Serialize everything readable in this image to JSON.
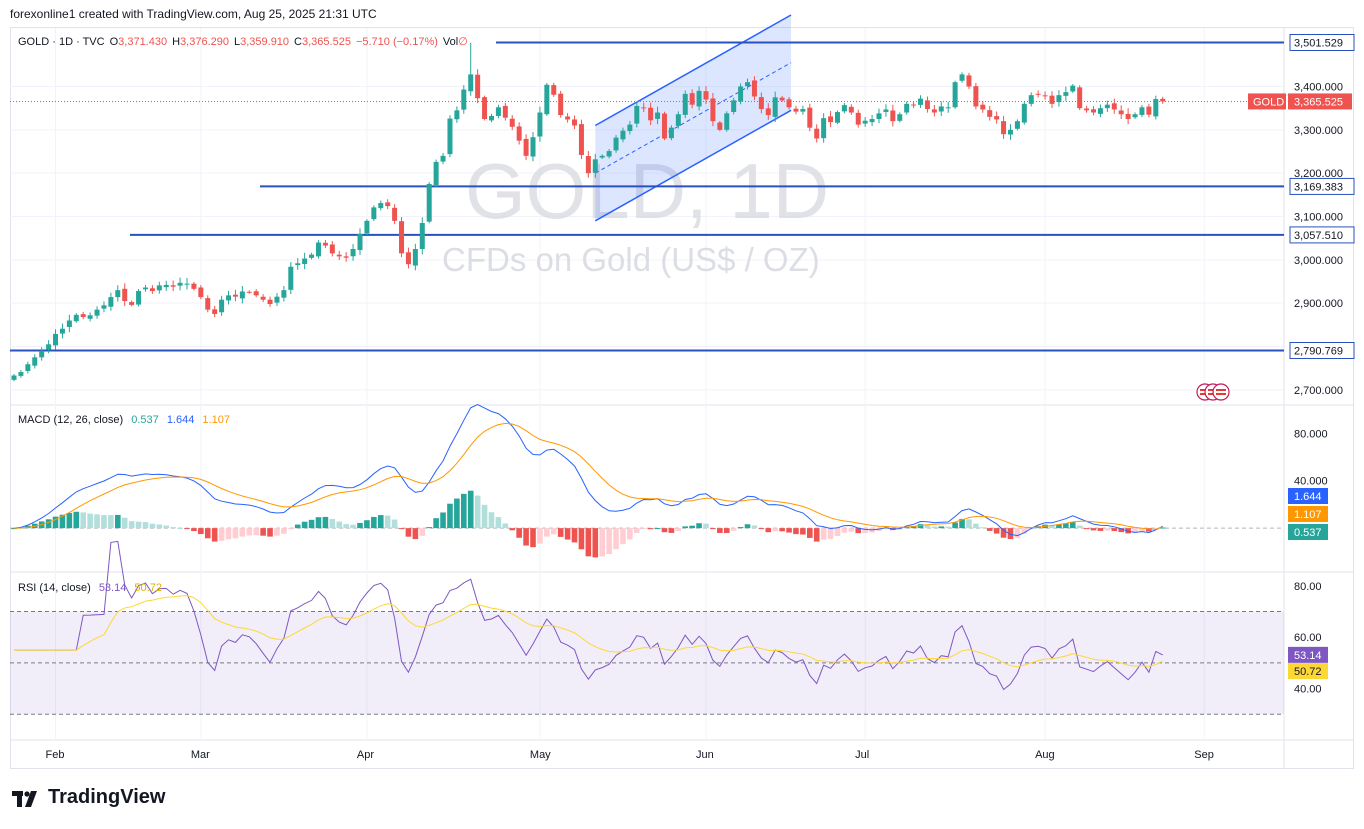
{
  "header": {
    "caption": "forexonline1 created with TradingView.com, Aug 25, 2025 21:31 UTC"
  },
  "legend": {
    "symbol": "GOLD · 1D · TVC",
    "open_label": "O",
    "open": "3,371.430",
    "high_label": "H",
    "high": "3,376.290",
    "low_label": "L",
    "low": "3,359.910",
    "close_label": "C",
    "close": "3,365.525",
    "change": "−5.710 (−0.17%)",
    "vol_label": "Vol",
    "vol_value": "∅"
  },
  "watermark": {
    "title": "GOLD, 1D",
    "subtitle": "CFDs on Gold (US$ / OZ)"
  },
  "macd_legend": {
    "label": "MACD (12, 26, close)",
    "hist": "0.537",
    "macd": "1.644",
    "signal": "1.107"
  },
  "rsi_legend": {
    "label": "RSI (14, close)",
    "rsi": "53.14",
    "ma": "50.72"
  },
  "footer": {
    "brand": "TradingView"
  },
  "colors": {
    "up": "#26a69a",
    "down": "#ef5350",
    "blue": "#2962ff",
    "orange": "#ff9800",
    "purple": "#7e57c2",
    "rsi_ma": "#fdd835",
    "level": "#2a52be"
  },
  "chart_data": {
    "type": "candlestick",
    "title": "GOLD · 1D · TVC",
    "x_months": [
      "Feb",
      "Mar",
      "Apr",
      "May",
      "Jun",
      "Jul",
      "Aug",
      "Sep"
    ],
    "price_axis": {
      "ticks": [
        "2,700.000",
        "2,800.000",
        "2,900.000",
        "3,000.000",
        "3,100.000",
        "3,200.000",
        "3,300.000",
        "3,400.000"
      ],
      "tick_values": [
        2700,
        2800,
        2900,
        3000,
        3100,
        3200,
        3300,
        3400
      ],
      "range": [
        2665,
        3535
      ]
    },
    "horizontal_levels": [
      {
        "label": "3,501.529",
        "value": 3501.529
      },
      {
        "label": "3,169.383",
        "value": 3169.383
      },
      {
        "label": "3,057.510",
        "value": 3057.51
      },
      {
        "label": "2,790.769",
        "value": 2790.769
      }
    ],
    "current_price": {
      "symbol": "GOLD",
      "label": "3,365.525",
      "value": 3365.525
    },
    "channel": {
      "start_index": 84,
      "end_index": 112,
      "lower_start": 3090,
      "upper_start": 3310,
      "lower_end": 3345,
      "upper_end": 3565
    },
    "closes": [
      2733,
      2741,
      2759,
      2775,
      2790,
      2805,
      2829,
      2841,
      2860,
      2873,
      2868,
      2872,
      2885,
      2895,
      2914,
      2930,
      2905,
      2896,
      2928,
      2936,
      2928,
      2941,
      2942,
      2938,
      2947,
      2945,
      2933,
      2914,
      2885,
      2875,
      2908,
      2918,
      2915,
      2927,
      2925,
      2918,
      2908,
      2898,
      2915,
      2930,
      2984,
      2992,
      3003,
      3012,
      3040,
      3033,
      3015,
      3008,
      3005,
      3025,
      3060,
      3090,
      3121,
      3131,
      3124,
      3090,
      3015,
      2990,
      3025,
      3085,
      3175,
      3226,
      3240,
      3326,
      3345,
      3393,
      3428,
      3373,
      3325,
      3332,
      3352,
      3328,
      3307,
      3275,
      3240,
      3283,
      3340,
      3404,
      3381,
      3334,
      3324,
      3310,
      3242,
      3200,
      3232,
      3240,
      3251,
      3282,
      3298,
      3312,
      3355,
      3351,
      3322,
      3340,
      3280,
      3305,
      3336,
      3383,
      3358,
      3390,
      3370,
      3320,
      3300,
      3338,
      3368,
      3400,
      3410,
      3377,
      3348,
      3334,
      3375,
      3368,
      3352,
      3342,
      3348,
      3305,
      3280,
      3327,
      3318,
      3341,
      3357,
      3340,
      3312,
      3321,
      3325,
      3338,
      3347,
      3320,
      3336,
      3360,
      3356,
      3372,
      3348,
      3340,
      3354,
      3352,
      3410,
      3428,
      3400,
      3354,
      3347,
      3330,
      3324,
      3290,
      3300,
      3320,
      3360,
      3380,
      3382,
      3378,
      3360,
      3380,
      3387,
      3402,
      3350,
      3345,
      3340,
      3350,
      3358,
      3347,
      3336,
      3325,
      3336,
      3352,
      3335,
      3371,
      3365.525
    ],
    "macd_axis": {
      "ticks": [
        "40.000",
        "80.000"
      ],
      "tick_values": [
        40,
        80
      ],
      "range": [
        -37,
        103
      ]
    },
    "macd_current": {
      "macd": 1.644,
      "signal": 1.107,
      "hist": 0.537
    },
    "rsi_axis": {
      "ticks": [
        "40.00",
        "60.00",
        "80.00"
      ],
      "tick_values": [
        40,
        60,
        80
      ],
      "bands": [
        30,
        50,
        70
      ],
      "range": [
        20,
        85
      ]
    },
    "rsi_current": {
      "rsi": 53.14,
      "ma": 50.72
    }
  }
}
